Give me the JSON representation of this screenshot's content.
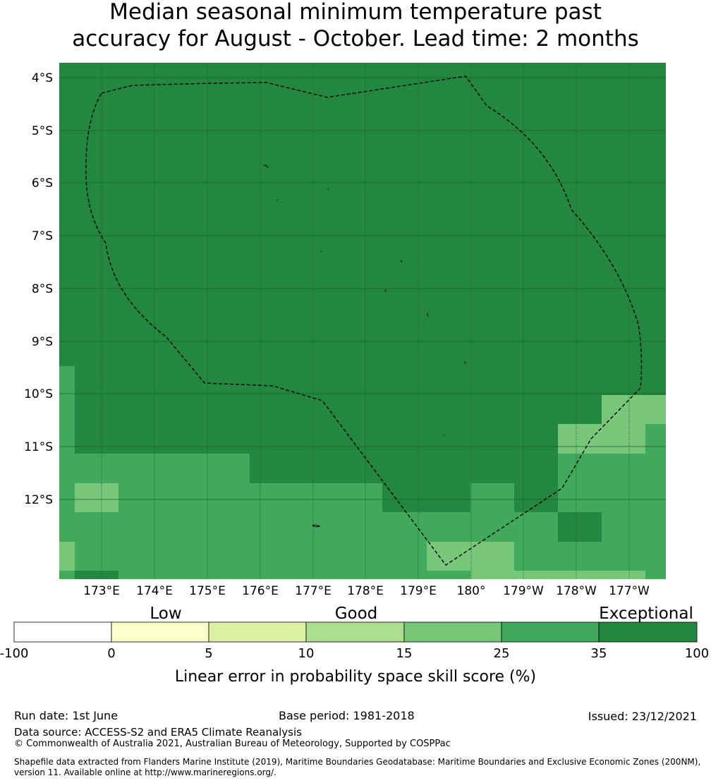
{
  "title": {
    "line1": "Median seasonal minimum temperature past",
    "line2": "accuracy for August - October. Lead time: 2 months"
  },
  "map": {
    "lat_labels": [
      "4°S",
      "5°S",
      "6°S",
      "7°S",
      "8°S",
      "9°S",
      "10°S",
      "11°S",
      "12°S"
    ],
    "lon_labels": [
      "173°E",
      "174°E",
      "175°E",
      "176°E",
      "177°E",
      "178°E",
      "179°E",
      "180°",
      "179°W",
      "178°W",
      "177°W"
    ],
    "colors": {
      "exceptional": "#23873f",
      "c25_35": "#40a95c",
      "c15_25": "#78c67a",
      "c10_15": "#addd8e",
      "c5_10": "#d9f0a3",
      "c0_5": "#ffffcc",
      "below0": "#ffffff"
    }
  },
  "legend": {
    "categories": [
      "Low",
      "Good",
      "Exceptional"
    ],
    "ticks": [
      "-100",
      "0",
      "5",
      "10",
      "15",
      "25",
      "35",
      "100"
    ],
    "xlabel": "Linear error in probability space skill score (%)"
  },
  "footer": {
    "run_date": "Run date: 1st June",
    "base_period": "Base period: 1981-2018",
    "issued": "Issued: 23/12/2021",
    "data_source": "Data source: ACCESS-S2 and ERA5 Climate Reanalysis",
    "copyright": "© Commonwealth of Australia 2021, Australian Bureau of Meteorology, Supported by COSPPac",
    "shapefile": "Shapefile data extracted from Flanders Marine Institute (2019), Maritime Boundaries Geodatabase: Maritime Boundaries and Exclusive Economic Zones (200NM), version 11. Available online at http://www.marineregions.org/."
  }
}
